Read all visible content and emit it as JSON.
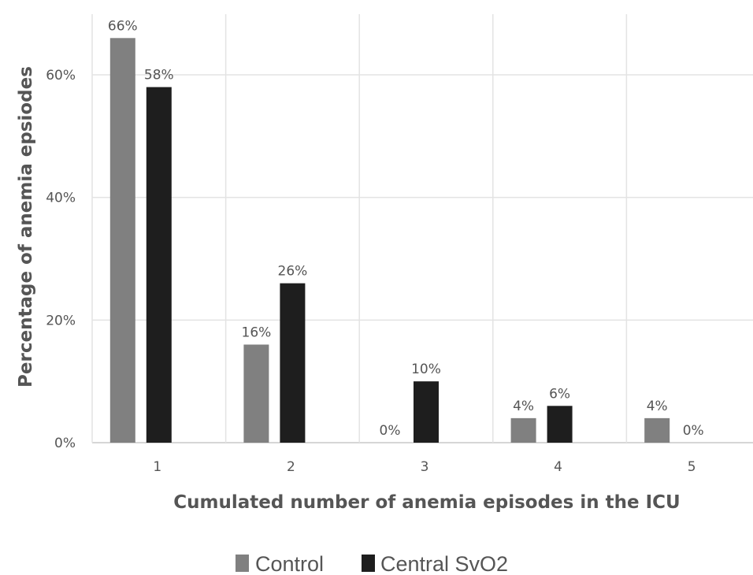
{
  "chart_data": {
    "type": "bar",
    "title": "",
    "xlabel": "Cumulated number of anemia episodes in the ICU",
    "ylabel": "Percentage of anemia epsiodes",
    "categories": [
      "1",
      "2",
      "3",
      "4",
      "5"
    ],
    "yticks": [
      "0%",
      "20%",
      "40%",
      "60%"
    ],
    "ylim": [
      0,
      0.7
    ],
    "grid": true,
    "legend_position": "bottom",
    "series": [
      {
        "name": "Control",
        "color": "#808080",
        "values": [
          0.66,
          0.16,
          0.0,
          0.04,
          0.04
        ],
        "labels": [
          "66%",
          "16%",
          "0%",
          "4%",
          "4%"
        ]
      },
      {
        "name": "Central SvO2",
        "color": "#1e1e1e",
        "values": [
          0.58,
          0.26,
          0.1,
          0.06,
          0.0
        ],
        "labels": [
          "58%",
          "26%",
          "10%",
          "6%",
          "0%"
        ]
      }
    ]
  }
}
